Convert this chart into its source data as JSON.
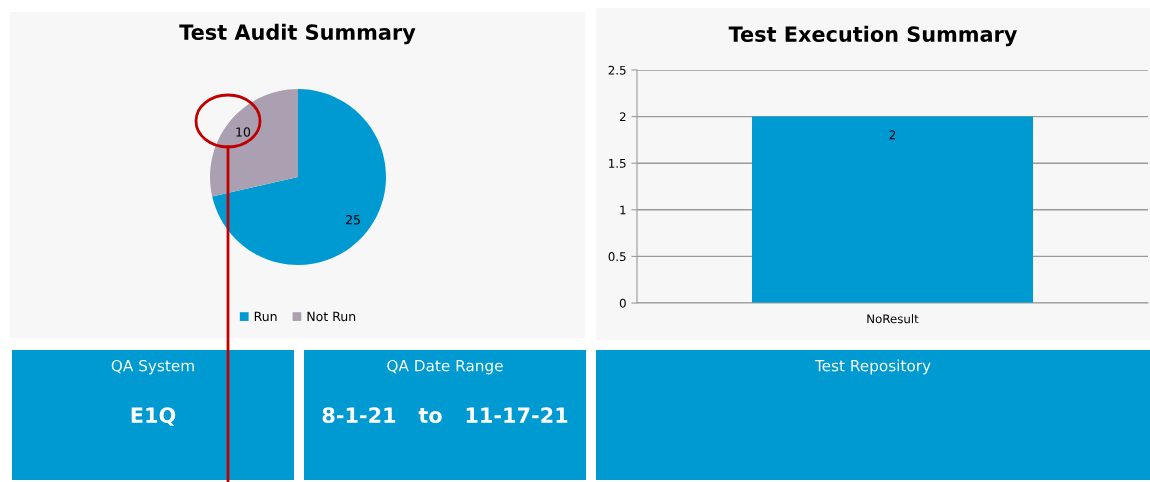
{
  "chart_data": [
    {
      "type": "pie",
      "title": "Test Audit Summary",
      "categories": [
        "Run",
        "Not Run"
      ],
      "values": [
        25,
        10
      ],
      "colors": [
        "#009ad3",
        "#aaa0b1"
      ],
      "data_labels": true,
      "legend": "bottom"
    },
    {
      "type": "bar",
      "title": "Test Execution Summary",
      "categories": [
        "NoResult"
      ],
      "values": [
        2
      ],
      "color": "#009ad3",
      "ylim": [
        0,
        2.5
      ],
      "yticks": [
        0,
        0.5,
        1,
        1.5,
        2,
        2.5
      ],
      "grid": "y",
      "data_labels": true
    },
    {
      "type": "other",
      "title": "QA System",
      "annotations": [
        "E1Q"
      ]
    },
    {
      "type": "other",
      "title": "QA Date Range",
      "annotations": [
        "8-1-21   to   11-17-21"
      ]
    },
    {
      "type": "other",
      "title": "Test Repository"
    }
  ]
}
